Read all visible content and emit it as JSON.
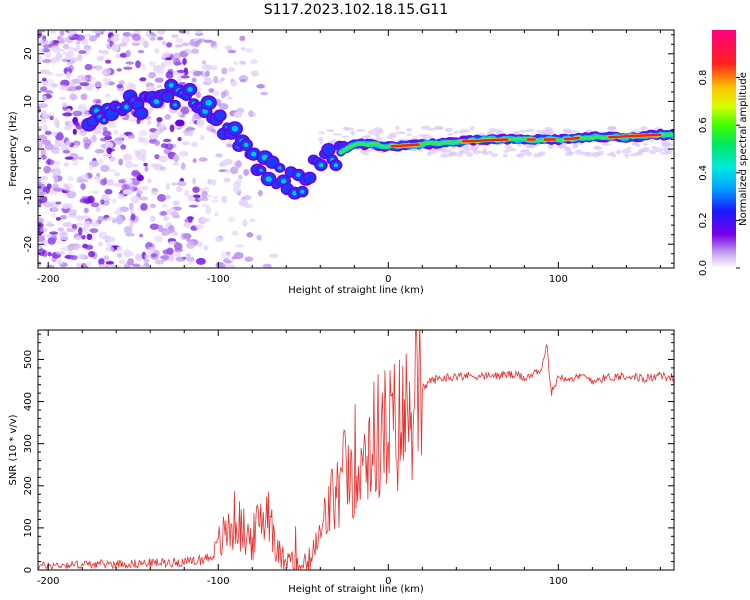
{
  "title": "S117.2023.102.18.15.G11",
  "chart_data": [
    {
      "type": "heatmap",
      "title": "",
      "xlabel": "Height of straight line (km)",
      "ylabel": "Frequency (Hz)",
      "xlim": [
        -206,
        168
      ],
      "ylim": [
        -25,
        25
      ],
      "xticks": [
        -200,
        -100,
        0,
        100
      ],
      "yticks": [
        -20,
        -10,
        0,
        10,
        20
      ],
      "grid": false,
      "colormap": "hsv-like",
      "colorbar": {
        "label": "Normalized spectral amplitude",
        "ticks": [
          0.0,
          0.2,
          0.4,
          0.6,
          0.8
        ],
        "range": [
          0,
          1
        ]
      },
      "ridge": {
        "description_points_x": [
          -175,
          -160,
          -145,
          -130,
          -120,
          -110,
          -100,
          -90,
          -80,
          -70,
          -60,
          -50,
          -45,
          -40,
          -35,
          -30,
          -25,
          -20,
          -10,
          0,
          20,
          40,
          60,
          80,
          100,
          120,
          140,
          160,
          168
        ],
        "description_points_y": [
          7,
          8,
          10,
          12,
          11,
          9,
          5,
          2,
          -2,
          -4,
          -7,
          -8,
          -5,
          -2,
          -1,
          -1,
          0,
          1,
          1,
          0.5,
          1,
          1.5,
          2,
          2,
          2,
          2.5,
          2.5,
          3,
          3
        ]
      }
    },
    {
      "type": "line",
      "title": "",
      "xlabel": "Height of straight line (km)",
      "ylabel": "SNR (10 * v/v)",
      "xlim": [
        -206,
        168
      ],
      "ylim": [
        0,
        570
      ],
      "xticks": [
        -200,
        -100,
        0,
        100
      ],
      "yticks": [
        0,
        100,
        200,
        300,
        400,
        500
      ],
      "grid": false,
      "series": [
        {
          "color": "#e8312f",
          "x": [
            -206,
            -190,
            -170,
            -150,
            -130,
            -115,
            -105,
            -100,
            -95,
            -90,
            -85,
            -80,
            -75,
            -70,
            -65,
            -60,
            -55,
            -50,
            -45,
            -40,
            -35,
            -30,
            -25,
            -20,
            -15,
            -10,
            -5,
            0,
            5,
            10,
            15,
            20,
            25,
            30,
            40,
            50,
            60,
            70,
            80,
            90,
            93,
            96,
            100,
            110,
            115,
            120,
            130,
            140,
            150,
            160,
            168
          ],
          "y": [
            10,
            12,
            14,
            15,
            18,
            20,
            30,
            60,
            90,
            120,
            90,
            70,
            120,
            150,
            40,
            20,
            15,
            10,
            30,
            80,
            150,
            180,
            220,
            260,
            280,
            300,
            320,
            330,
            340,
            360,
            400,
            430,
            450,
            455,
            460,
            462,
            460,
            465,
            458,
            470,
            540,
            420,
            460,
            455,
            460,
            450,
            458,
            462,
            455,
            460,
            458
          ]
        }
      ]
    }
  ]
}
